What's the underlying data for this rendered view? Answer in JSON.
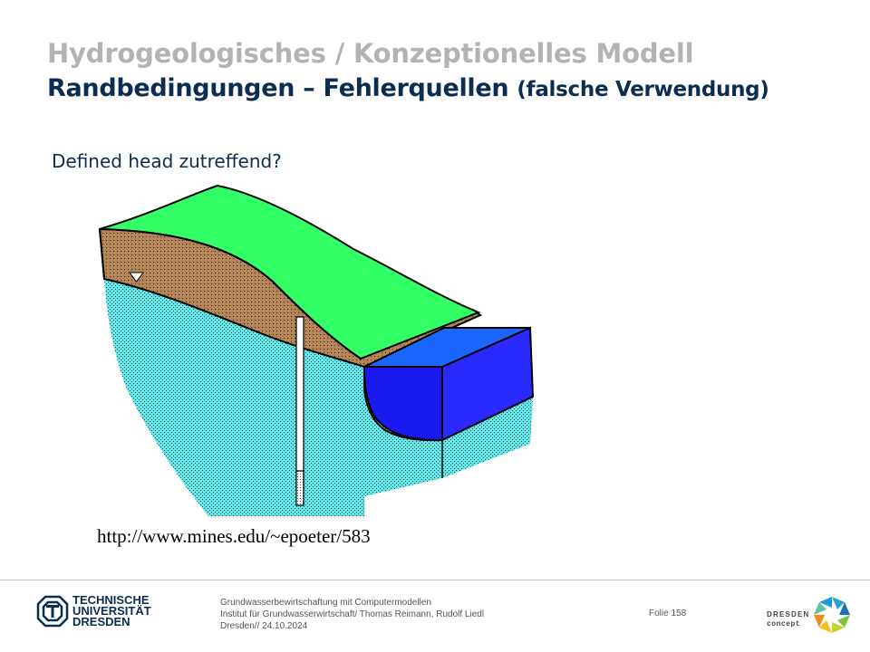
{
  "header": {
    "title_line1": "Hydrogeologisches / Konzeptionelles Modell",
    "title_line2": "Randbedingungen – Fehlerquellen",
    "title_line2_paren": "(falsche Verwendung)"
  },
  "main": {
    "question": "Defined head zutreffend?",
    "source_url": "http://www.mines.edu/~epoeter/583"
  },
  "footer": {
    "university_lines": [
      "TECHNISCHE",
      "UNIVERSITÄT",
      "DRESDEN"
    ],
    "info_lines": [
      "Grundwasserbewirtschaftung mit Computermodellen",
      "Institut für Grundwasserwirtschaft/ Thomas Reimann, Rudolf Liedl",
      "Dresden// 24.10.2024"
    ],
    "slide_number": "Folie 158",
    "partner_logo_lines": [
      "DRESDEN",
      "concept"
    ]
  },
  "colors": {
    "title_gray": "#b3b3b3",
    "title_navy": "#0c2d52",
    "surface_green": "#33ff66",
    "soil_brown": "#b5855a",
    "aquifer_cyan": "#66e6e6",
    "water_blue": "#1a1aee",
    "water_top": "#1a66ff"
  }
}
